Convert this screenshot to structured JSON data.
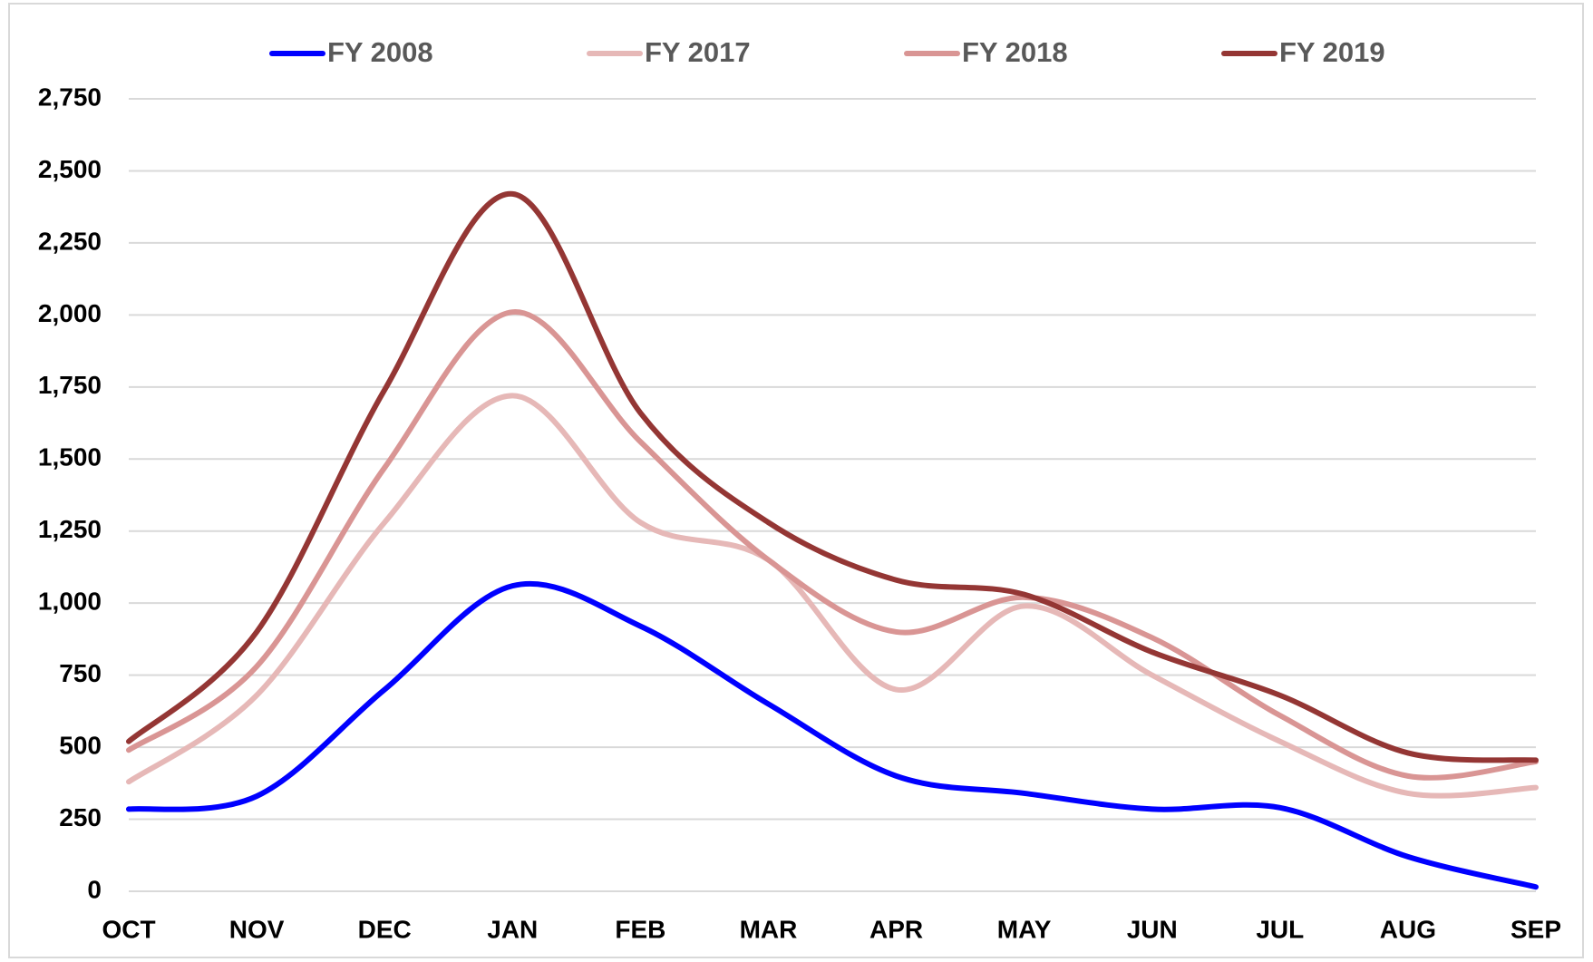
{
  "chart_data": {
    "type": "line",
    "categories": [
      "OCT",
      "NOV",
      "DEC",
      "JAN",
      "FEB",
      "MAR",
      "APR",
      "MAY",
      "JUN",
      "JUL",
      "AUG",
      "SEP"
    ],
    "series": [
      {
        "name": "FY 2008",
        "color": "#0000ff",
        "values": [
          285,
          330,
          700,
          1060,
          920,
          650,
          400,
          340,
          285,
          290,
          120,
          15
        ]
      },
      {
        "name": "FY 2017",
        "color": "#e6b8b7",
        "values": [
          380,
          680,
          1280,
          1720,
          1280,
          1150,
          700,
          990,
          750,
          520,
          340,
          360
        ]
      },
      {
        "name": "FY 2018",
        "color": "#d99594",
        "values": [
          490,
          780,
          1470,
          2010,
          1560,
          1150,
          900,
          1020,
          880,
          610,
          400,
          450
        ]
      },
      {
        "name": "FY 2019",
        "color": "#943634",
        "values": [
          520,
          900,
          1740,
          2420,
          1660,
          1280,
          1080,
          1030,
          830,
          680,
          480,
          455
        ]
      }
    ],
    "ylim": [
      0,
      2750
    ],
    "yticks": [
      0,
      250,
      500,
      750,
      {
        "value": 1000,
        "label": "1,000"
      },
      {
        "value": 1250,
        "label": "1,250"
      },
      {
        "value": 1500,
        "label": "1,500"
      },
      {
        "value": 1750,
        "label": "1,750"
      },
      {
        "value": 2000,
        "label": "2,000"
      },
      {
        "value": 2250,
        "label": "2,250"
      },
      {
        "value": 2500,
        "label": "2,500"
      },
      {
        "value": 2750,
        "label": "2,750"
      }
    ],
    "grid": true,
    "legend": "top",
    "smooth": true
  }
}
